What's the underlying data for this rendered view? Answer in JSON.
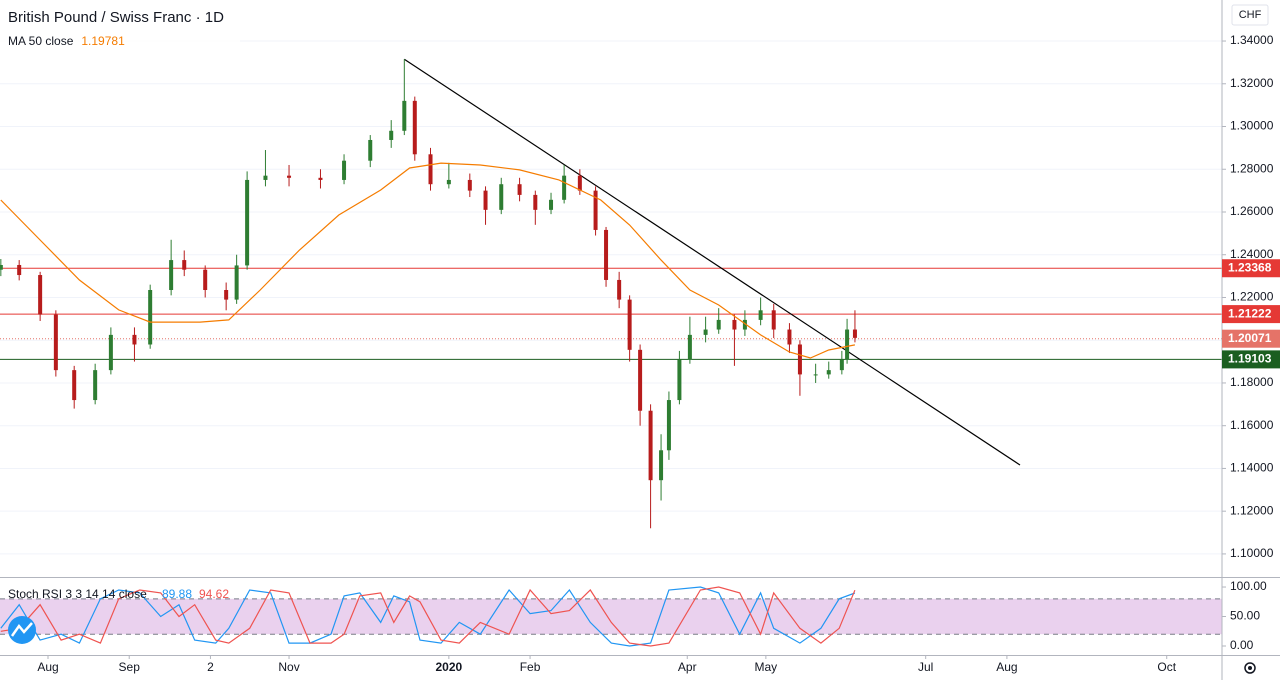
{
  "chart_data": [
    {
      "type": "candlestick",
      "title": "British Pound / Swiss Franc · 1D",
      "currency": "CHF",
      "xlim": [
        -18.32,
        448.1
      ],
      "ylim": [
        1.0892,
        1.3592
      ],
      "yticks": [
        {
          "value": 1.34,
          "label": "1.34000"
        },
        {
          "value": 1.32,
          "label": "1.32000"
        },
        {
          "value": 1.3,
          "label": "1.30000"
        },
        {
          "value": 1.28,
          "label": "1.28000"
        },
        {
          "value": 1.26,
          "label": "1.26000"
        },
        {
          "value": 1.24,
          "label": "1.24000"
        },
        {
          "value": 1.22,
          "label": "1.22000"
        },
        {
          "value": 1.2,
          "label": "1.20000"
        },
        {
          "value": 1.18,
          "label": "1.18000"
        },
        {
          "value": 1.16,
          "label": "1.16000"
        },
        {
          "value": 1.14,
          "label": "1.14000"
        },
        {
          "value": 1.12,
          "label": "1.12000"
        },
        {
          "value": 1.1,
          "label": "1.10000"
        }
      ],
      "up_color": "#2e7d32",
      "down_color": "#b71c1c",
      "x": [
        -18,
        -11,
        -3,
        3,
        10,
        18,
        24,
        33,
        39,
        47,
        52,
        60,
        68,
        72,
        76,
        83,
        92,
        104,
        113,
        123,
        131,
        136,
        140,
        146,
        153,
        161,
        167,
        173,
        180,
        186,
        192,
        197,
        203,
        209,
        213,
        218,
        222,
        226,
        230,
        234,
        237,
        241,
        245,
        251,
        256,
        262,
        266,
        272,
        277,
        283,
        287,
        293,
        298,
        303,
        305,
        308
      ],
      "open": [
        1.233,
        1.2352,
        1.2305,
        1.212,
        1.186,
        1.172,
        1.186,
        1.2025,
        1.198,
        1.2235,
        1.2375,
        1.233,
        1.2235,
        1.219,
        1.235,
        1.275,
        1.277,
        1.276,
        1.275,
        1.284,
        1.2937,
        1.298,
        1.312,
        1.287,
        1.273,
        1.275,
        1.27,
        1.261,
        1.273,
        1.268,
        1.261,
        1.2657,
        1.277,
        1.27,
        1.2516,
        1.2282,
        1.219,
        1.1955,
        1.167,
        1.1345,
        1.1485,
        1.172,
        1.191,
        1.2025,
        1.205,
        1.2095,
        1.205,
        1.2095,
        1.214,
        1.205,
        1.198,
        1.184,
        1.184,
        1.186,
        1.191,
        1.205
      ],
      "high": [
        1.238,
        1.2375,
        1.232,
        1.214,
        1.188,
        1.189,
        1.206,
        1.206,
        1.226,
        1.247,
        1.242,
        1.235,
        1.227,
        1.24,
        1.279,
        1.289,
        1.282,
        1.28,
        1.287,
        1.296,
        1.303,
        1.3315,
        1.314,
        1.29,
        1.283,
        1.278,
        1.272,
        1.276,
        1.276,
        1.27,
        1.269,
        1.282,
        1.28,
        1.272,
        1.253,
        1.232,
        1.221,
        1.198,
        1.17,
        1.156,
        1.176,
        1.195,
        1.211,
        1.211,
        1.215,
        1.212,
        1.214,
        1.22,
        1.217,
        1.208,
        1.2,
        1.189,
        1.19,
        1.195,
        1.21,
        1.214
      ],
      "low": [
        1.23,
        1.228,
        1.209,
        1.183,
        1.168,
        1.17,
        1.184,
        1.19,
        1.196,
        1.221,
        1.23,
        1.22,
        1.214,
        1.217,
        1.233,
        1.272,
        1.272,
        1.271,
        1.273,
        1.281,
        1.29,
        1.296,
        1.284,
        1.27,
        1.271,
        1.267,
        1.254,
        1.259,
        1.265,
        1.254,
        1.259,
        1.264,
        1.268,
        1.249,
        1.225,
        1.215,
        1.19,
        1.16,
        1.112,
        1.125,
        1.144,
        1.17,
        1.189,
        1.199,
        1.203,
        1.188,
        1.202,
        1.207,
        1.201,
        1.194,
        1.174,
        1.18,
        1.182,
        1.184,
        1.189,
        1.199
      ],
      "close": [
        1.2352,
        1.2305,
        1.212,
        1.186,
        1.172,
        1.186,
        1.2025,
        1.198,
        1.2235,
        1.2375,
        1.233,
        1.2235,
        1.219,
        1.235,
        1.275,
        1.277,
        1.276,
        1.275,
        1.284,
        1.2937,
        1.298,
        1.312,
        1.287,
        1.273,
        1.275,
        1.27,
        1.261,
        1.273,
        1.268,
        1.261,
        1.2657,
        1.277,
        1.27,
        1.2516,
        1.2282,
        1.219,
        1.1955,
        1.167,
        1.1345,
        1.1485,
        1.172,
        1.191,
        1.2025,
        1.205,
        1.2095,
        1.205,
        1.2095,
        1.214,
        1.205,
        1.198,
        1.184,
        1.184,
        1.186,
        1.191,
        1.205,
        1.2011
      ],
      "ma": {
        "name": "MA 50 close",
        "last": 1.19781,
        "color": "#f57c00",
        "x": [
          -18,
          -3,
          12,
          27,
          39,
          58,
          69,
          81,
          96,
          111,
          127,
          138,
          150,
          165,
          180,
          195,
          211,
          222,
          234,
          245,
          256,
          272,
          283,
          291,
          298,
          308
        ],
        "values": [
          1.2656,
          1.2469,
          1.2282,
          1.2142,
          1.2085,
          1.2085,
          1.2095,
          1.2235,
          1.2422,
          1.2586,
          1.2703,
          1.2806,
          1.2829,
          1.282,
          1.2797,
          1.275,
          1.2656,
          1.2539,
          1.2375,
          1.2235,
          1.2165,
          1.2025,
          1.1945,
          1.1917,
          1.1954,
          1.1978
        ]
      },
      "levels": [
        {
          "value": 1.23368,
          "color": "#e53935",
          "style": "solid"
        },
        {
          "value": 1.21222,
          "color": "#e53935",
          "style": "solid"
        },
        {
          "value": 1.20071,
          "color": "#e57368",
          "style": "dotted"
        },
        {
          "value": 1.19103,
          "color": "#1b5e20",
          "style": "solid"
        }
      ],
      "trendline": {
        "x": [
          136,
          371
        ],
        "values": [
          1.3315,
          1.1416
        ],
        "color": "#000000"
      }
    },
    {
      "type": "line",
      "title": "Stoch RSI 3 3 14 14 close",
      "xlim": [
        -18.32,
        448.1
      ],
      "ylim": [
        -15.25,
        115.3
      ],
      "band": [
        20,
        80
      ],
      "band_color": "#e1bee7",
      "yticks": [
        {
          "value": 100,
          "label": "100.00"
        },
        {
          "value": 50,
          "label": "50.00"
        },
        {
          "value": 0,
          "label": "0.00"
        }
      ],
      "xticks": [
        {
          "value": 0,
          "label": "Aug"
        },
        {
          "value": 31,
          "label": "Sep"
        },
        {
          "value": 62,
          "label": "2"
        },
        {
          "value": 92,
          "label": "Nov"
        },
        {
          "value": 153,
          "label": "2020"
        },
        {
          "value": 184,
          "label": "Feb"
        },
        {
          "value": 244,
          "label": "Apr"
        },
        {
          "value": 274,
          "label": "May"
        },
        {
          "value": 335,
          "label": "Jul"
        },
        {
          "value": 366,
          "label": "Aug"
        },
        {
          "value": 427,
          "label": "Oct"
        }
      ],
      "x": [
        -18,
        -11,
        -3,
        5,
        12,
        20,
        27,
        35,
        43,
        50,
        56,
        64,
        69,
        77,
        85,
        92,
        100,
        108,
        113,
        119,
        127,
        132,
        138,
        142,
        150,
        157,
        165,
        176,
        184,
        192,
        199,
        207,
        215,
        222,
        230,
        237,
        249,
        256,
        264,
        272,
        277,
        287,
        295,
        302,
        308
      ],
      "series": [
        {
          "color": "#2196f3",
          "last": 89.88,
          "values": [
            30,
            70,
            10,
            20,
            5,
            80,
            95,
            90,
            50,
            70,
            10,
            5,
            30,
            95,
            90,
            5,
            5,
            20,
            85,
            90,
            40,
            85,
            75,
            10,
            5,
            40,
            20,
            95,
            55,
            60,
            95,
            40,
            5,
            0,
            5,
            95,
            100,
            90,
            20,
            90,
            30,
            5,
            30,
            80,
            89.88
          ]
        },
        {
          "color": "#ef5350",
          "last": 94.62,
          "values": [
            25,
            30,
            70,
            10,
            20,
            5,
            80,
            95,
            90,
            50,
            70,
            10,
            5,
            30,
            95,
            90,
            5,
            5,
            20,
            85,
            90,
            40,
            85,
            75,
            10,
            5,
            40,
            20,
            95,
            55,
            60,
            95,
            40,
            5,
            0,
            5,
            95,
            100,
            90,
            20,
            90,
            30,
            5,
            30,
            94.62
          ]
        }
      ]
    }
  ]
}
